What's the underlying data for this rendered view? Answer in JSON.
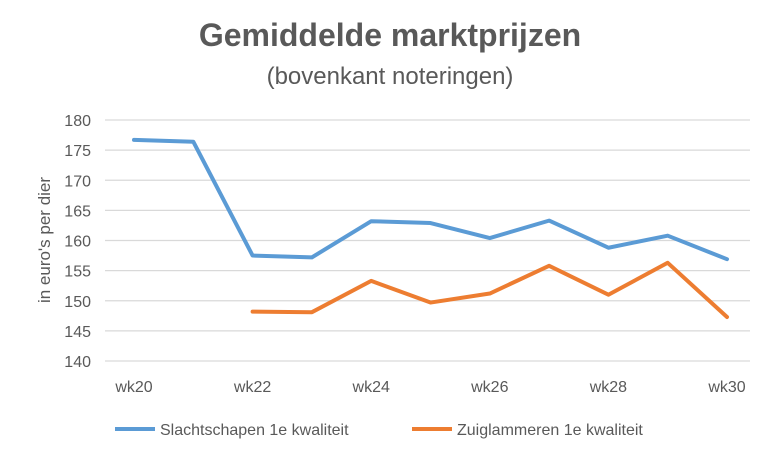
{
  "chart_data": {
    "type": "line",
    "title": "Gemiddelde marktprijzen",
    "subtitle": "(bovenkant noteringen)",
    "xlabel": "",
    "ylabel": "in euro's per dier",
    "ylim": [
      140,
      180
    ],
    "yticks": [
      "140",
      "145",
      "150",
      "155",
      "160",
      "165",
      "170",
      "175",
      "180"
    ],
    "x": [
      "wk20",
      "wk21",
      "wk22",
      "wk23",
      "wk24",
      "wk25",
      "wk26",
      "wk27",
      "wk28",
      "wk29",
      "wk30"
    ],
    "xtick_labels": [
      "wk20",
      "wk22",
      "wk24",
      "wk26",
      "wk28",
      "wk30"
    ],
    "grid": true,
    "legend_position": "bottom",
    "series": [
      {
        "name": "Slachtschapen 1e kwaliteit",
        "color": "#5B9BD5",
        "values": [
          176.7,
          176.4,
          157.5,
          157.2,
          163.2,
          162.9,
          160.4,
          163.3,
          158.8,
          160.8,
          156.9
        ]
      },
      {
        "name": "Zuiglammeren 1e kwaliteit",
        "color": "#ED7D31",
        "values": [
          null,
          null,
          148.2,
          148.1,
          153.3,
          149.7,
          151.2,
          155.8,
          151.0,
          156.3,
          147.3
        ]
      }
    ]
  }
}
